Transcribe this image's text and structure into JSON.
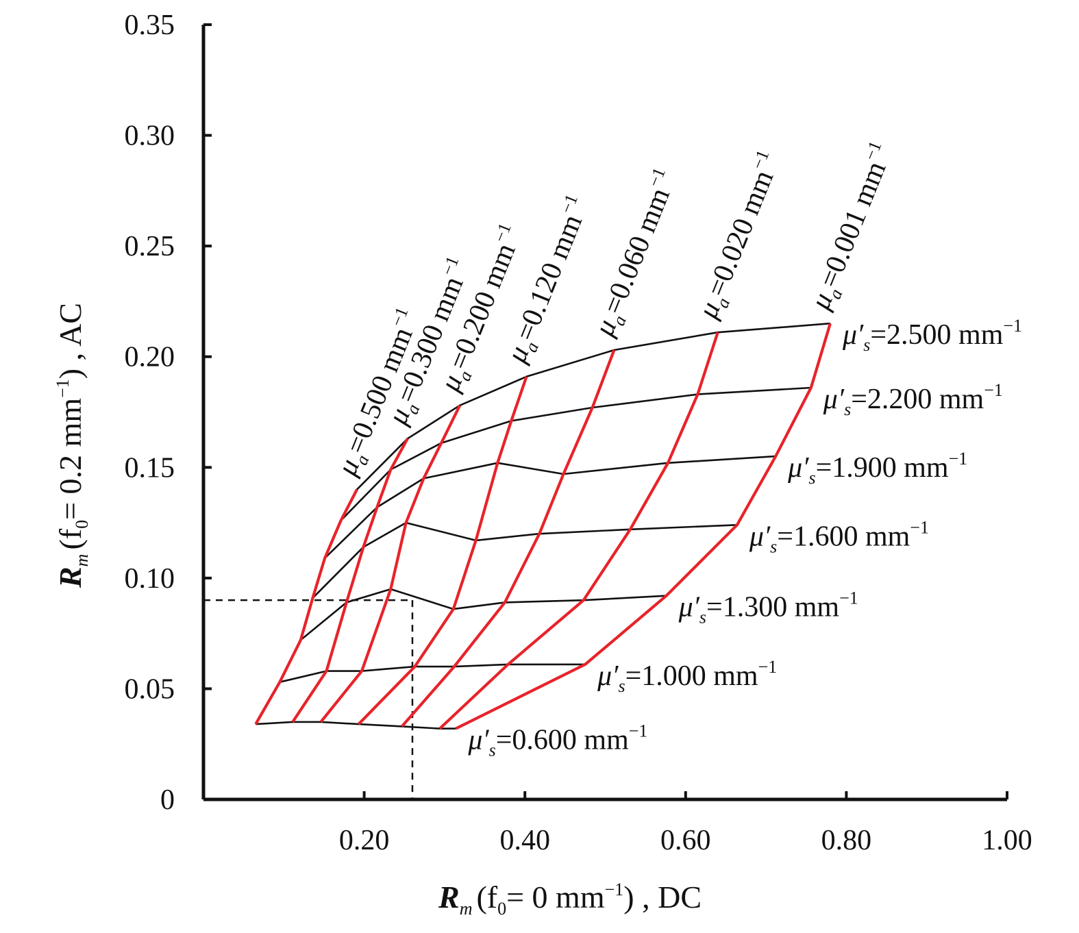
{
  "chart_data": {
    "type": "line",
    "x_axis": {
      "label_main": "R",
      "label_sub": "m",
      "label_mid": "(f",
      "label_mid_sub": "0",
      "label_tail": "= 0 mm",
      "label_tail_sup": "−1",
      "label_end": ") , DC",
      "range": [
        0,
        1.0
      ],
      "ticks": [
        0.2,
        0.4,
        0.6,
        0.8,
        1.0
      ],
      "tick_labels": [
        "0.20",
        "0.40",
        "0.60",
        "0.80",
        "1.00"
      ]
    },
    "y_axis": {
      "label_main": "R",
      "label_sub": "m",
      "label_mid": "(f",
      "label_mid_sub": "0",
      "label_tail": "= 0.2 mm",
      "label_tail_sup": "−1",
      "label_end": ") , AC",
      "range": [
        0,
        0.35
      ],
      "ticks": [
        0,
        0.05,
        0.1,
        0.15,
        0.2,
        0.25,
        0.3,
        0.35
      ],
      "tick_labels": [
        "0",
        "0.05",
        "0.10",
        "0.15",
        "0.20",
        "0.25",
        "0.30",
        "0.35"
      ]
    },
    "grid": false,
    "mua_lines_color": "#e8232a",
    "musp_lines_color": "#111111",
    "mua_labels": [
      "=0.500 mm",
      "=0.300 mm",
      "=0.200 mm",
      "=0.120 mm",
      "=0.060 mm",
      "=0.020 mm",
      "=0.001 mm"
    ],
    "musp_labels": [
      "=2.500 mm",
      "=2.200 mm",
      "=1.900 mm",
      "=1.600 mm",
      "=1.300 mm",
      "=1.000 mm",
      "=0.600 mm"
    ],
    "label_symbol_mua": "μ",
    "label_symbol_mua_sub": "a",
    "label_symbol_musp": "μ′",
    "label_symbol_musp_sub": "s",
    "label_unit_sup": "−1",
    "grid_points": [
      [
        [
          0.191,
          0.14
        ],
        [
          0.171,
          0.126
        ],
        [
          0.151,
          0.109
        ],
        [
          0.136,
          0.091
        ],
        [
          0.121,
          0.072
        ],
        [
          0.095,
          0.053
        ],
        [
          0.065,
          0.034
        ]
      ],
      [
        [
          0.254,
          0.163
        ],
        [
          0.233,
          0.149
        ],
        [
          0.216,
          0.132
        ],
        [
          0.199,
          0.114
        ],
        [
          0.178,
          0.089
        ],
        [
          0.153,
          0.058
        ],
        [
          0.111,
          0.035
        ]
      ],
      [
        [
          0.319,
          0.178
        ],
        [
          0.296,
          0.161
        ],
        [
          0.274,
          0.145
        ],
        [
          0.252,
          0.125
        ],
        [
          0.233,
          0.095
        ],
        [
          0.197,
          0.058
        ],
        [
          0.146,
          0.035
        ]
      ],
      [
        [
          0.402,
          0.191
        ],
        [
          0.383,
          0.171
        ],
        [
          0.366,
          0.152
        ],
        [
          0.339,
          0.117
        ],
        [
          0.311,
          0.086
        ],
        [
          0.263,
          0.06
        ],
        [
          0.193,
          0.034
        ]
      ],
      [
        [
          0.511,
          0.203
        ],
        [
          0.484,
          0.177
        ],
        [
          0.448,
          0.147
        ],
        [
          0.418,
          0.12
        ],
        [
          0.375,
          0.089
        ],
        [
          0.312,
          0.06
        ],
        [
          0.247,
          0.033
        ]
      ],
      [
        [
          0.64,
          0.211
        ],
        [
          0.615,
          0.183
        ],
        [
          0.578,
          0.152
        ],
        [
          0.531,
          0.122
        ],
        [
          0.473,
          0.09
        ],
        [
          0.379,
          0.061
        ],
        [
          0.294,
          0.032
        ]
      ],
      [
        [
          0.78,
          0.215
        ],
        [
          0.756,
          0.186
        ],
        [
          0.712,
          0.155
        ],
        [
          0.664,
          0.124
        ],
        [
          0.576,
          0.092
        ],
        [
          0.475,
          0.061
        ],
        [
          0.314,
          0.032
        ]
      ]
    ],
    "example_point": {
      "x": 0.26,
      "y": 0.09
    }
  }
}
